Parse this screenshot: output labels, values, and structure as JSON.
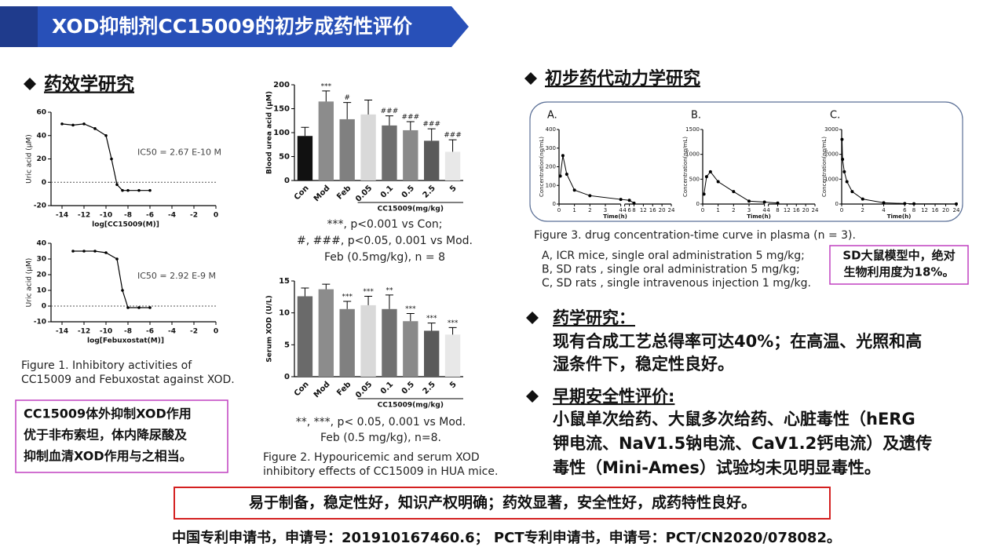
{
  "header": {
    "title": "XOD抑制剂CC15009的初步成药性评价"
  },
  "efficacy": {
    "heading": "药效学研究",
    "ic50_charts": [
      {
        "ylabel": "Uric acid (μM)",
        "xlabel": "log[CC15009(M)]",
        "xlim": [
          -15,
          0
        ],
        "ylim": [
          -20,
          60
        ],
        "xticks": [
          -14,
          -12,
          -10,
          -8,
          -6,
          -4,
          -2,
          0
        ],
        "yticks": [
          -20,
          0,
          20,
          40,
          60
        ],
        "annotation": "IC50 = 2.67 E-10 M",
        "x": [
          -14,
          -13,
          -12,
          -11,
          -10,
          -9.5,
          -9,
          -8.5,
          -8,
          -7,
          -6
        ],
        "values": [
          50,
          49,
          50,
          46,
          40,
          20,
          -2,
          -7,
          -7,
          -7,
          -7
        ]
      },
      {
        "ylabel": "Uric acid (μM)",
        "xlabel": "log[Febuxostat(M)]",
        "xlim": [
          -15,
          0
        ],
        "ylim": [
          -10,
          40
        ],
        "xticks": [
          -14,
          -12,
          -10,
          -8,
          -6,
          -4,
          -2,
          0
        ],
        "yticks": [
          -10,
          0,
          10,
          20,
          30,
          40
        ],
        "annotation": "IC50 = 2.92 E-9 M",
        "x": [
          -13,
          -12,
          -11,
          -10,
          -9,
          -8.5,
          -8,
          -7,
          -6
        ],
        "values": [
          35,
          35,
          35,
          34,
          30,
          10,
          -1,
          -1,
          -1
        ]
      }
    ],
    "figure1_caption": [
      "Figure 1. Inhibitory activities of",
      "CC15009 and Febuxostat against XOD."
    ],
    "conclusion": [
      "CC15009体外抑制XOD作用",
      "优于非布索坦，体内降尿酸及",
      "抑制血清XOD作用与之相当。"
    ]
  },
  "bar_charts": [
    {
      "ylabel": "Blood urea acid (μM)",
      "xlabel": "CC15009(mg/kg)",
      "categories": [
        "Con",
        "Mod",
        "Feb",
        "0.05",
        "0.1",
        "0.5",
        "2.5",
        "5"
      ],
      "values": [
        93,
        165,
        128,
        138,
        115,
        105,
        83,
        60
      ],
      "errors": [
        18,
        22,
        35,
        30,
        20,
        18,
        25,
        25
      ],
      "significance": [
        null,
        "***",
        "#",
        null,
        "###",
        "###",
        "###",
        "###"
      ],
      "colors": [
        "#111111",
        "#8c8c8c",
        "#808080",
        "#d9d9d9",
        "#6e6e6e",
        "#8a8a8a",
        "#5a5a5a",
        "#e8e8e8"
      ],
      "ylim": [
        0,
        200
      ],
      "yticks": [
        0,
        50,
        100,
        150,
        200
      ]
    },
    {
      "ylabel": "Serum XOD (U/L)",
      "xlabel": "CC15009(mg/kg)",
      "categories": [
        "Con",
        "Mod",
        "Feb",
        "0.05",
        "0.1",
        "0.5",
        "2.5",
        "5"
      ],
      "values": [
        12.6,
        13.7,
        10.6,
        11.2,
        10.6,
        8.7,
        7.2,
        6.6
      ],
      "errors": [
        1.3,
        0.8,
        1.2,
        1.4,
        2.2,
        1.2,
        1.2,
        1.1
      ],
      "significance": [
        null,
        null,
        "***",
        "***",
        "**",
        "***",
        "***",
        "***"
      ],
      "colors": [
        "#6a6a6a",
        "#8c8c8c",
        "#808080",
        "#d9d9d9",
        "#707070",
        "#8a8a8a",
        "#5a5a5a",
        "#e8e8e8"
      ],
      "ylim": [
        0,
        15
      ],
      "yticks": [
        0,
        5,
        10,
        15
      ]
    }
  ],
  "bar_notes": [
    [
      "***, p<0.001 vs Con;",
      "#, ###, p<0.05, 0.001 vs Mod.",
      "Feb (0.5mg/kg), n = 8"
    ],
    [
      "**, ***, p< 0.05, 0.001 vs Mod.",
      "Feb (0.5 mg/kg), n=8."
    ]
  ],
  "figure2_caption": [
    "Figure 2. Hypouricemic and serum XOD",
    "inhibitory effects of CC15009 in  HUA mice."
  ],
  "pk": {
    "heading": "初步药代动力学研究",
    "charts": [
      {
        "label": "A.",
        "ylabel": "Concentration(ng/mL)",
        "xlabel": "Time(h)",
        "ylim": [
          0,
          400
        ],
        "yticks": [
          0,
          100,
          200,
          300,
          400
        ],
        "segments": [
          {
            "xlim": [
              0,
              4
            ],
            "xticks": [
              0,
              1,
              2,
              3,
              4
            ]
          },
          {
            "xlim": [
              4,
              24
            ],
            "xticks": [
              4,
              6,
              8,
              12,
              16,
              20,
              24
            ]
          }
        ],
        "x": [
          0.083,
          0.25,
          0.5,
          1,
          2,
          4,
          6,
          8
        ],
        "values": [
          150,
          260,
          160,
          75,
          45,
          25,
          20,
          5
        ]
      },
      {
        "label": "B.",
        "ylabel": "Concentration(ng/mL)",
        "xlabel": "Time(h)",
        "ylim": [
          0,
          1500
        ],
        "yticks": [
          0,
          500,
          1000,
          1500
        ],
        "segments": [
          {
            "xlim": [
              0,
              4
            ],
            "xticks": [
              0,
              1,
              2,
              3,
              4
            ]
          },
          {
            "xlim": [
              4,
              24
            ],
            "xticks": [
              4,
              8,
              12,
              16,
              20,
              24
            ]
          }
        ],
        "x": [
          0.083,
          0.25,
          0.5,
          1,
          2,
          3,
          4,
          8
        ],
        "values": [
          200,
          550,
          650,
          450,
          250,
          60,
          40,
          20
        ]
      },
      {
        "label": "C.",
        "ylabel": "Concentration(ng/mL)",
        "xlabel": "Time(h)",
        "ylim": [
          0,
          3000
        ],
        "yticks": [
          0,
          1000,
          2000,
          3000
        ],
        "segments": [
          {
            "xlim": [
              0,
              6
            ],
            "xticks": [
              0,
              2,
              4,
              6
            ]
          },
          {
            "xlim": [
              6,
              24
            ],
            "xticks": [
              8,
              12,
              16,
              20,
              24
            ]
          }
        ],
        "x": [
          0.033,
          0.083,
          0.25,
          0.5,
          1,
          2,
          4,
          6,
          8,
          24
        ],
        "values": [
          2600,
          1800,
          1300,
          900,
          500,
          200,
          50,
          20,
          10,
          5
        ]
      }
    ],
    "figure3_caption": "Figure 3. drug concentration-time curve in plasma (n = 3).",
    "details": [
      "A, ICR mice,  single oral administration 5 mg/kg;",
      "B, SD rats , single oral administration 5 mg/kg;",
      "C, SD rats , single intravenous injection 1 mg/kg."
    ],
    "highlight": [
      "SD大鼠模型中，绝对",
      "生物利用度为18%。"
    ]
  },
  "pharmacy": {
    "heading": "药学研究：",
    "lines": [
      "现有合成工艺总得率可达40%；在高温、光照和高",
      "湿条件下，稳定性良好。"
    ]
  },
  "safety": {
    "heading": "早期安全性评价:",
    "lines": [
      "小鼠单次给药、大鼠多次给药、心脏毒性（hERG",
      "钾电流、NaV1.5钠电流、CaV1.2钙电流）及遗传",
      "毒性（Mini-Ames）试验均未见明显毒性。"
    ]
  },
  "summary": "易于制备，稳定性好，知识产权明确；药效显著，安全性好，成药特性良好。",
  "footer": "中国专利申请书，申请号：201910167460.6； PCT专利申请书，申请号：PCT/CN2020/078082。"
}
